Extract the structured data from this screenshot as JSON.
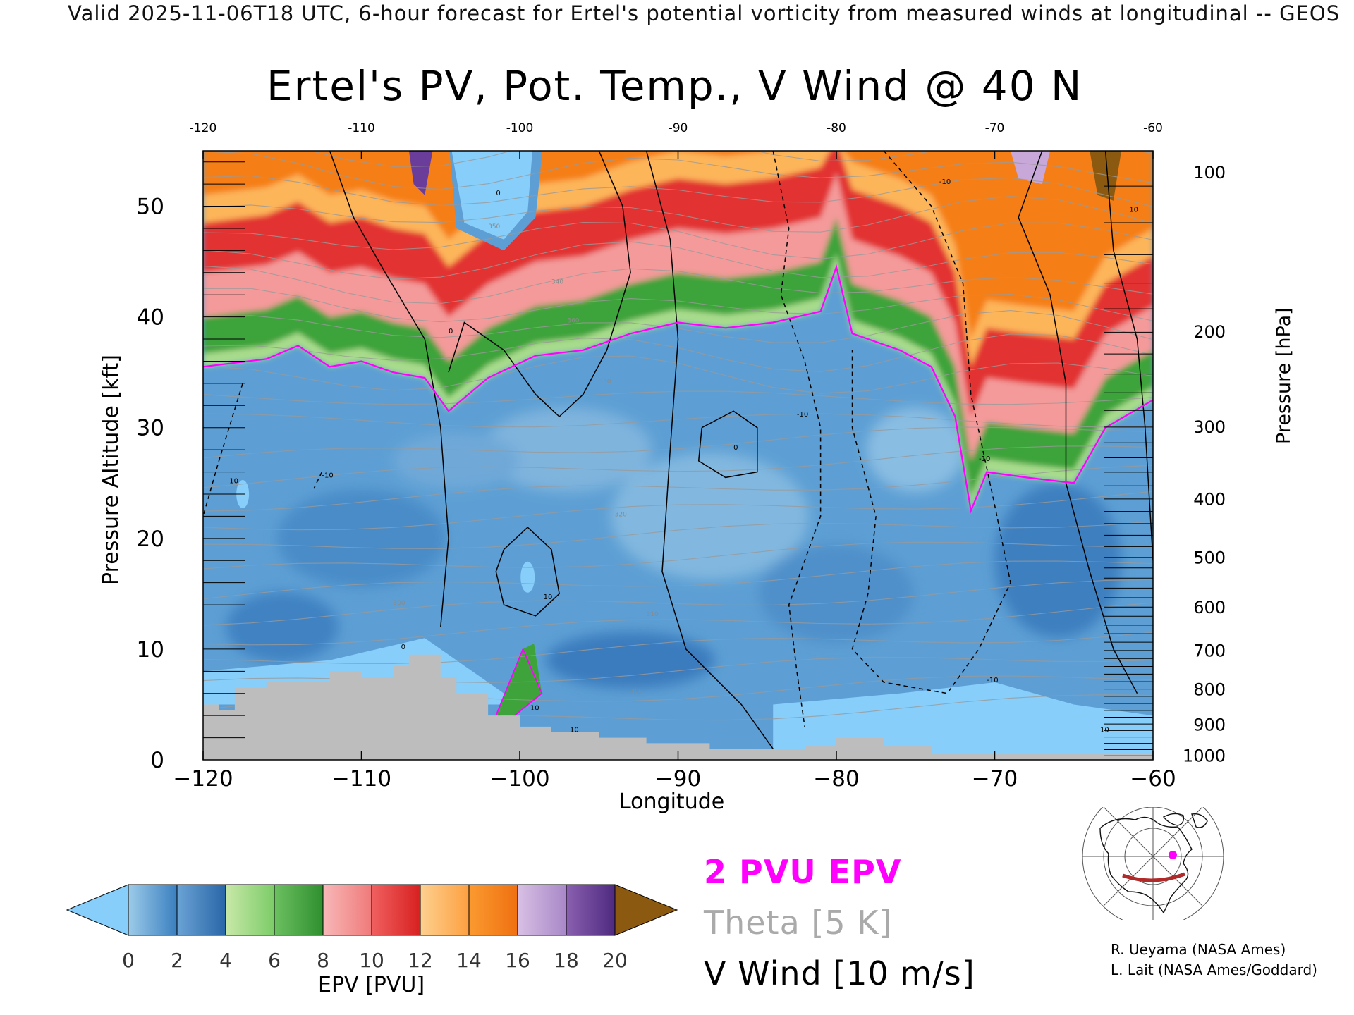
{
  "header": {
    "forecast_line": "Valid 2025-11-06T18 UTC, 6-hour forecast for Ertel's potential vorticity from measured winds at longitudinal -- GEOS"
  },
  "legend": {
    "epv_line": "2 PVU EPV",
    "theta_line": "Theta [5 K]",
    "vwind_line": "V Wind [10 m/s]",
    "epv_color": "#ff00ff",
    "theta_color": "#aaaaaa"
  },
  "colorbar": {
    "label": "EPV [PVU]",
    "ticks": [
      "0",
      "2",
      "4",
      "6",
      "8",
      "10",
      "12",
      "14",
      "16",
      "18",
      "20"
    ],
    "colors": [
      "#8ec6e6",
      "#3a7fbf",
      "#a8dc8c",
      "#3da33a",
      "#f49a9a",
      "#e23030",
      "#fdb55a",
      "#f57f17",
      "#c8a8d8",
      "#6a3d9a",
      "#f8f098"
    ],
    "under_color": "#87cefa",
    "over_color": "#8b5a10"
  },
  "credits": {
    "line1": "R. Ueyama (NASA Ames)",
    "line2": "L. Lait (NASA Ames/Goddard)"
  },
  "inset_map": {
    "description_icon": "north-america-polar-map-icon",
    "track_color": "#c0392b",
    "marker_color": "#ff00ff"
  },
  "chart_data": {
    "type": "heatmap",
    "title": "Ertel's PV, Pot. Temp., V Wind @ 40 N",
    "xlabel": "Longitude",
    "ylabel": "Pressure Altitude [kft]",
    "y2label": "Pressure [hPa]",
    "xlim": [
      -120,
      -60
    ],
    "ylim": [
      0,
      55
    ],
    "x_ticks": [
      "−120",
      "−110",
      "−100",
      "−90",
      "−80",
      "−70",
      "−60"
    ],
    "x_tick_values": [
      -120,
      -110,
      -100,
      -90,
      -80,
      -70,
      -60
    ],
    "top_x_ticks": [
      "-120",
      "-110",
      "-100",
      "-90",
      "-80",
      "-70",
      "-60"
    ],
    "y_ticks": [
      "0",
      "10",
      "20",
      "30",
      "40",
      "50"
    ],
    "y_tick_values": [
      0,
      10,
      20,
      30,
      40,
      50
    ],
    "pressure_ticks": [
      {
        "label": "100",
        "kft": 53.1
      },
      {
        "label": "200",
        "kft": 38.7
      },
      {
        "label": "300",
        "kft": 30.1
      },
      {
        "label": "400",
        "kft": 23.6
      },
      {
        "label": "500",
        "kft": 18.3
      },
      {
        "label": "600",
        "kft": 13.8
      },
      {
        "label": "700",
        "kft": 9.9
      },
      {
        "label": "800",
        "kft": 6.4
      },
      {
        "label": "900",
        "kft": 3.2
      },
      {
        "label": "1000",
        "kft": 0.4
      }
    ],
    "tropopause_2pvu": [
      {
        "x": -120,
        "y": 35.5
      },
      {
        "x": -116,
        "y": 36.2
      },
      {
        "x": -114,
        "y": 37.4
      },
      {
        "x": -112,
        "y": 35.5
      },
      {
        "x": -110,
        "y": 36.0
      },
      {
        "x": -108,
        "y": 35.0
      },
      {
        "x": -106,
        "y": 34.5
      },
      {
        "x": -104.5,
        "y": 31.5
      },
      {
        "x": -102,
        "y": 34.5
      },
      {
        "x": -99,
        "y": 36.5
      },
      {
        "x": -96,
        "y": 37.0
      },
      {
        "x": -93,
        "y": 38.5
      },
      {
        "x": -90,
        "y": 39.5
      },
      {
        "x": -87,
        "y": 39.0
      },
      {
        "x": -84,
        "y": 39.5
      },
      {
        "x": -81,
        "y": 40.5
      },
      {
        "x": -80,
        "y": 44.5
      },
      {
        "x": -79,
        "y": 38.5
      },
      {
        "x": -76,
        "y": 37.0
      },
      {
        "x": -74,
        "y": 35.5
      },
      {
        "x": -72.5,
        "y": 31.0
      },
      {
        "x": -71.5,
        "y": 22.5
      },
      {
        "x": -70.5,
        "y": 26.0
      },
      {
        "x": -68,
        "y": 25.5
      },
      {
        "x": -65,
        "y": 25.0
      },
      {
        "x": -63,
        "y": 30.0
      },
      {
        "x": -60,
        "y": 32.5
      }
    ],
    "terrain_height_kft": [
      {
        "x": -120,
        "y": 5.0
      },
      {
        "x": -119,
        "y": 4.5
      },
      {
        "x": -118,
        "y": 6.5
      },
      {
        "x": -116,
        "y": 7.0
      },
      {
        "x": -113,
        "y": 7.0
      },
      {
        "x": -112,
        "y": 8.0
      },
      {
        "x": -110,
        "y": 7.5
      },
      {
        "x": -108,
        "y": 8.5
      },
      {
        "x": -107,
        "y": 9.5
      },
      {
        "x": -105,
        "y": 7.5
      },
      {
        "x": -104,
        "y": 6.0
      },
      {
        "x": -102,
        "y": 4.0
      },
      {
        "x": -100,
        "y": 3.0
      },
      {
        "x": -98,
        "y": 2.5
      },
      {
        "x": -95,
        "y": 2.0
      },
      {
        "x": -92,
        "y": 1.5
      },
      {
        "x": -88,
        "y": 1.0
      },
      {
        "x": -82,
        "y": 1.2
      },
      {
        "x": -80,
        "y": 2.0
      },
      {
        "x": -77,
        "y": 1.2
      },
      {
        "x": -74,
        "y": 0.5
      },
      {
        "x": -66,
        "y": 0.5
      },
      {
        "x": -60,
        "y": 0.6
      }
    ],
    "vwind_zero_contours": [
      [
        {
          "x": -112,
          "y": 55
        },
        {
          "x": -110.5,
          "y": 49
        },
        {
          "x": -108.5,
          "y": 44
        },
        {
          "x": -106,
          "y": 38
        },
        {
          "x": -105,
          "y": 30
        },
        {
          "x": -104.5,
          "y": 20
        },
        {
          "x": -105,
          "y": 12
        }
      ],
      [
        {
          "x": -104.5,
          "y": 35
        },
        {
          "x": -103.5,
          "y": 39.5
        },
        {
          "x": -101,
          "y": 37
        },
        {
          "x": -99,
          "y": 33
        },
        {
          "x": -97.5,
          "y": 31
        },
        {
          "x": -96,
          "y": 33
        },
        {
          "x": -94.5,
          "y": 37
        },
        {
          "x": -93,
          "y": 44
        },
        {
          "x": -93.5,
          "y": 50
        },
        {
          "x": -95,
          "y": 55
        }
      ],
      [
        {
          "x": -92,
          "y": 55
        },
        {
          "x": -90.5,
          "y": 47
        },
        {
          "x": -90,
          "y": 38
        },
        {
          "x": -90.5,
          "y": 28
        },
        {
          "x": -91,
          "y": 17
        },
        {
          "x": -89.5,
          "y": 10
        },
        {
          "x": -86,
          "y": 5
        },
        {
          "x": -84,
          "y": 1
        }
      ],
      [
        {
          "x": -88.5,
          "y": 30
        },
        {
          "x": -86.5,
          "y": 31.5
        },
        {
          "x": -85,
          "y": 30
        },
        {
          "x": -85,
          "y": 26
        },
        {
          "x": -87,
          "y": 25.5
        },
        {
          "x": -88.7,
          "y": 27
        },
        {
          "x": -88.5,
          "y": 30
        }
      ],
      [
        {
          "x": -67,
          "y": 55
        },
        {
          "x": -68.5,
          "y": 49
        },
        {
          "x": -66.5,
          "y": 42
        },
        {
          "x": -65.5,
          "y": 34
        },
        {
          "x": -65.5,
          "y": 25
        },
        {
          "x": -64,
          "y": 17
        },
        {
          "x": -62.5,
          "y": 10
        },
        {
          "x": -61,
          "y": 6
        }
      ]
    ],
    "vwind_10_contours": [
      [
        {
          "x": -101,
          "y": 19
        },
        {
          "x": -99.5,
          "y": 21
        },
        {
          "x": -98,
          "y": 19
        },
        {
          "x": -97.5,
          "y": 15
        },
        {
          "x": -99,
          "y": 13
        },
        {
          "x": -101,
          "y": 14
        },
        {
          "x": -101.5,
          "y": 17
        },
        {
          "x": -101,
          "y": 19
        }
      ],
      [
        {
          "x": -63,
          "y": 55
        },
        {
          "x": -62.5,
          "y": 46
        },
        {
          "x": -61,
          "y": 38
        },
        {
          "x": -60.5,
          "y": 30
        },
        {
          "x": -60,
          "y": 18
        }
      ]
    ],
    "vwind_neg10_contours": [
      [
        {
          "x": -84,
          "y": 55
        },
        {
          "x": -83,
          "y": 48
        },
        {
          "x": -83.5,
          "y": 42
        },
        {
          "x": -82,
          "y": 36
        },
        {
          "x": -81,
          "y": 30
        },
        {
          "x": -81,
          "y": 22
        },
        {
          "x": -83,
          "y": 14
        },
        {
          "x": -82.5,
          "y": 8
        },
        {
          "x": -82,
          "y": 3
        }
      ],
      [
        {
          "x": -77,
          "y": 55
        },
        {
          "x": -74,
          "y": 50
        },
        {
          "x": -72,
          "y": 43
        },
        {
          "x": -71.5,
          "y": 33
        },
        {
          "x": -70,
          "y": 23
        },
        {
          "x": -69,
          "y": 16
        },
        {
          "x": -71,
          "y": 10
        },
        {
          "x": -73,
          "y": 6
        },
        {
          "x": -77,
          "y": 7
        },
        {
          "x": -79,
          "y": 10
        },
        {
          "x": -78,
          "y": 15
        },
        {
          "x": -77.5,
          "y": 22
        },
        {
          "x": -79,
          "y": 30
        },
        {
          "x": -79,
          "y": 37
        }
      ],
      [
        {
          "x": -117.5,
          "y": 34
        },
        {
          "x": -119,
          "y": 27
        },
        {
          "x": -120,
          "y": 22
        }
      ],
      [
        {
          "x": -112.5,
          "y": 26
        },
        {
          "x": -113,
          "y": 24.5
        }
      ]
    ],
    "theta_contour_labels": [
      {
        "x": -108,
        "y": 14,
        "text": "300"
      },
      {
        "x": -94,
        "y": 22,
        "text": "320"
      },
      {
        "x": -92,
        "y": 13,
        "text": "310"
      },
      {
        "x": -93,
        "y": 6,
        "text": "300"
      },
      {
        "x": -95,
        "y": 34,
        "text": "330"
      },
      {
        "x": -102,
        "y": 48,
        "text": "350"
      },
      {
        "x": -98,
        "y": 43,
        "text": "340"
      },
      {
        "x": -97,
        "y": 39.5,
        "text": "360"
      }
    ],
    "vwind_contour_labels": [
      {
        "x": -107.5,
        "y": 10,
        "text": "0"
      },
      {
        "x": -104.5,
        "y": 38.5,
        "text": "0"
      },
      {
        "x": -101.5,
        "y": 51,
        "text": "0"
      },
      {
        "x": -98.5,
        "y": 14.5,
        "text": "10"
      },
      {
        "x": -99.5,
        "y": 4.5,
        "text": "-10"
      },
      {
        "x": -97,
        "y": 2.5,
        "text": "-10"
      },
      {
        "x": -86.5,
        "y": 28,
        "text": "0"
      },
      {
        "x": -82.5,
        "y": 31,
        "text": "-10"
      },
      {
        "x": -71,
        "y": 27,
        "text": "-10"
      },
      {
        "x": -73.5,
        "y": 52,
        "text": "-10"
      },
      {
        "x": -70.5,
        "y": 7,
        "text": "-10"
      },
      {
        "x": -63.5,
        "y": 2.5,
        "text": "-10"
      },
      {
        "x": -61.5,
        "y": 49.5,
        "text": "10"
      },
      {
        "x": -118.5,
        "y": 25,
        "text": "-10"
      },
      {
        "x": -112.5,
        "y": 25.5,
        "text": "-10"
      }
    ]
  }
}
